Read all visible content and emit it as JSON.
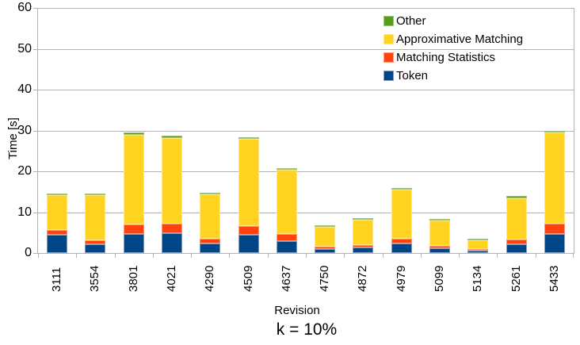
{
  "chart_data": {
    "type": "bar",
    "stacked": true,
    "xlabel": "Revision",
    "ylabel": "Time [s]",
    "caption": "k = 10%",
    "ylim": [
      0,
      60
    ],
    "y_ticks": [
      0,
      10,
      20,
      30,
      40,
      50,
      60
    ],
    "grid": true,
    "categories": [
      "3111",
      "3554",
      "3801",
      "4021",
      "4290",
      "4509",
      "4637",
      "4750",
      "4872",
      "4979",
      "5099",
      "5134",
      "5261",
      "5433"
    ],
    "series": [
      {
        "name": "Token",
        "color": "#004586",
        "highlight": "#7f9cc1",
        "values": [
          4.4,
          2.1,
          4.7,
          4.9,
          2.4,
          4.4,
          3.0,
          1.0,
          1.3,
          2.3,
          1.1,
          0.5,
          2.2,
          4.7
        ]
      },
      {
        "name": "Matching Statistics",
        "color": "#ff420e",
        "highlight": "#ff9878",
        "values": [
          1.2,
          1.1,
          2.2,
          2.3,
          1.1,
          2.2,
          1.7,
          0.6,
          0.7,
          1.2,
          0.6,
          0.3,
          1.1,
          2.5
        ]
      },
      {
        "name": "Approximative Matching",
        "color": "#ffd320",
        "highlight": "#ffe789",
        "values": [
          8.6,
          11.0,
          22.0,
          21.0,
          10.8,
          21.4,
          15.7,
          4.9,
          6.2,
          12.1,
          6.3,
          2.2,
          10.2,
          22.3
        ]
      },
      {
        "name": "Other",
        "color": "#579d1c",
        "highlight": "#9bc578",
        "values": [
          0.3,
          0.3,
          0.6,
          0.5,
          0.4,
          0.4,
          0.4,
          0.3,
          0.3,
          0.4,
          0.3,
          0.3,
          0.4,
          0.5
        ]
      }
    ],
    "legend": {
      "position": "top-right",
      "entries": [
        "Other",
        "Approximative Matching",
        "Matching Statistics",
        "Token"
      ]
    },
    "colors": {
      "axis": "#b3b3b3",
      "grid": "#b3b3b3",
      "text": "#000000",
      "background": "#ffffff"
    }
  }
}
